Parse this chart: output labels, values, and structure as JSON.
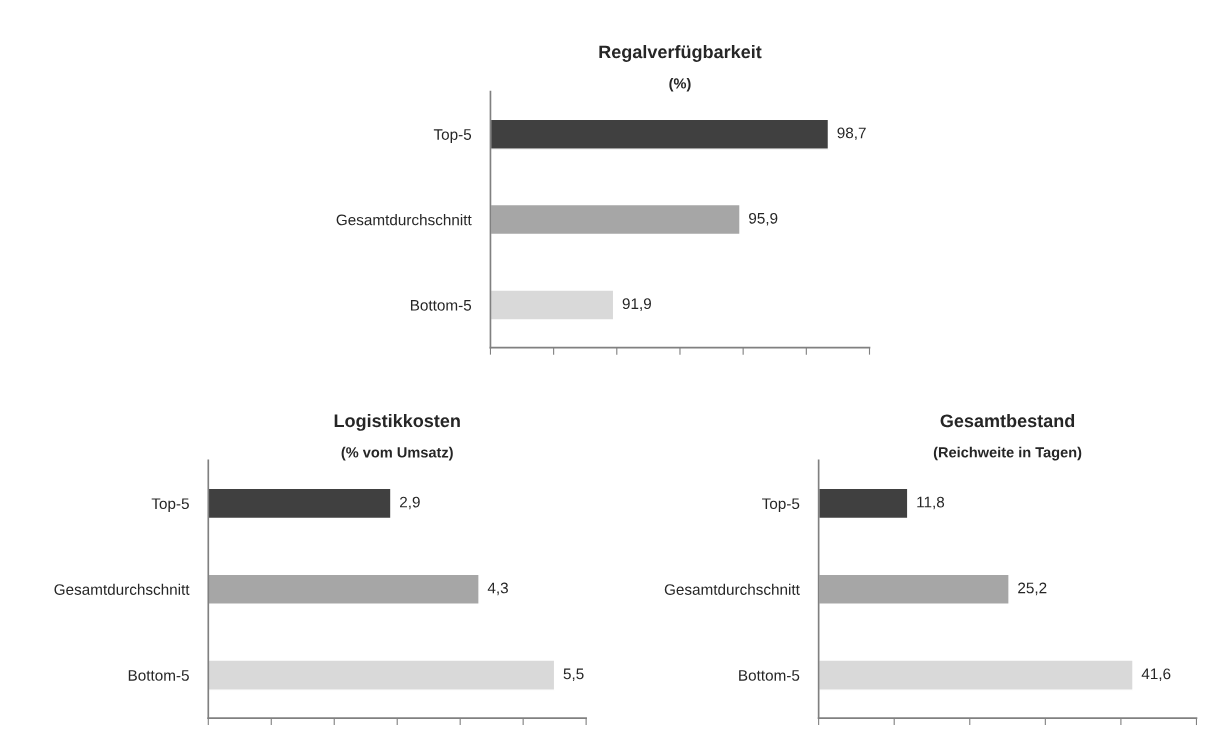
{
  "chart_data": [
    {
      "type": "bar",
      "orientation": "horizontal",
      "title": "Regalverfügbarkeit",
      "subtitle": "(%)",
      "categories": [
        "Top-5",
        "Gesamtdurchschnitt",
        "Bottom-5"
      ],
      "values": [
        98.7,
        95.9,
        91.9
      ],
      "colors": [
        "#404040",
        "#a6a6a6",
        "#d9d9d9"
      ],
      "value_labels": [
        "98,7",
        "95,9",
        "91,9"
      ],
      "xlim": [
        88,
        100
      ],
      "xticks": [
        {
          "value": 88,
          "label": null
        },
        {
          "value": 90,
          "label": null
        },
        {
          "value": 92,
          "label": null
        },
        {
          "value": 94,
          "label": null
        },
        {
          "value": 96,
          "label": null
        },
        {
          "value": 98,
          "label": null
        },
        {
          "value": 100,
          "label": null
        }
      ],
      "tick_labels": "y",
      "grid": false,
      "legend": false
    },
    {
      "type": "bar",
      "orientation": "horizontal",
      "title": "Logistikkosten",
      "subtitle": "(% vom Umsatz)",
      "categories": [
        "Top-5",
        "Gesamtdurchschnitt",
        "Bottom-5"
      ],
      "values": [
        2.9,
        4.3,
        5.5
      ],
      "colors": [
        "#404040",
        "#a6a6a6",
        "#d9d9d9"
      ],
      "value_labels": [
        "2,9",
        "4,3",
        "5,5"
      ],
      "xlim": [
        0,
        6
      ],
      "xticks": [
        {
          "value": 0,
          "label": null
        },
        {
          "value": 1,
          "label": null
        },
        {
          "value": 2,
          "label": null
        },
        {
          "value": 3,
          "label": null
        },
        {
          "value": 4,
          "label": null
        },
        {
          "value": 5,
          "label": null
        },
        {
          "value": 6,
          "label": null
        }
      ],
      "tick_labels": "y",
      "grid": false,
      "legend": false
    },
    {
      "type": "bar",
      "orientation": "horizontal",
      "title": "Gesamtbestand",
      "subtitle": "(Reichweite in Tagen)",
      "categories": [
        "Top-5",
        "Gesamtdurchschnitt",
        "Bottom-5"
      ],
      "values": [
        11.8,
        25.2,
        41.6
      ],
      "colors": [
        "#404040",
        "#a6a6a6",
        "#d9d9d9"
      ],
      "value_labels": [
        "11,8",
        "25,2",
        "41,6"
      ],
      "xlim": [
        0,
        50
      ],
      "xticks": [
        {
          "value": 0,
          "label": null
        },
        {
          "value": 10,
          "label": null
        },
        {
          "value": 20,
          "label": null
        },
        {
          "value": 30,
          "label": null
        },
        {
          "value": 40,
          "label": null
        },
        {
          "value": 50,
          "label": null
        }
      ],
      "tick_labels": "y",
      "grid": false,
      "legend": false
    }
  ]
}
